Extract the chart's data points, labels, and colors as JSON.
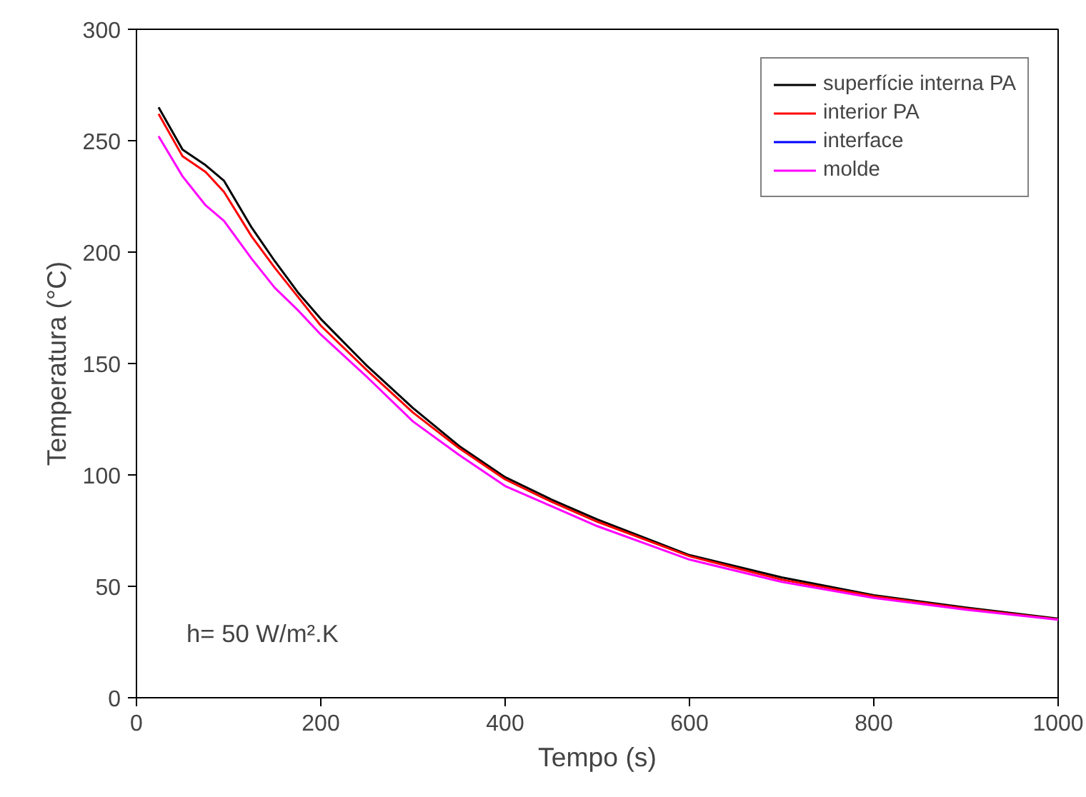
{
  "chart_data": {
    "type": "line",
    "xlabel": "Tempo (s)",
    "ylabel": "Temperatura (°C)",
    "x": [
      24,
      50,
      75,
      95,
      125,
      150,
      175,
      200,
      250,
      300,
      350,
      400,
      450,
      500,
      600,
      700,
      800,
      900,
      1000
    ],
    "series": [
      {
        "name": "superfície interna PA",
        "color": "#000000",
        "values": [
          265,
          246,
          239,
          232,
          211,
          196,
          182,
          170,
          149,
          130,
          113,
          99,
          89,
          80,
          64,
          54,
          46,
          40.5,
          35.5
        ]
      },
      {
        "name": "interior PA",
        "color": "#ff0000",
        "values": [
          262,
          243,
          236,
          227,
          207,
          193,
          180,
          167,
          147,
          128,
          112,
          98,
          88,
          79,
          63.5,
          53,
          45.5,
          40,
          35.2
        ]
      },
      {
        "name": "interface",
        "color": "#0000ff",
        "values": [
          null,
          null,
          null,
          null,
          null,
          null,
          null,
          null,
          null,
          null,
          null,
          null,
          null,
          null,
          null,
          null,
          null,
          null,
          null
        ]
      },
      {
        "name": "molde",
        "color": "#ff00ff",
        "values": [
          252,
          234,
          221,
          214,
          197,
          184,
          174,
          163,
          144,
          124,
          109,
          95,
          86,
          77,
          62,
          52,
          44.8,
          39.5,
          35
        ]
      }
    ],
    "xlim": [
      0,
      1000
    ],
    "ylim": [
      0,
      300
    ],
    "xticks": [
      0,
      200,
      400,
      600,
      800,
      1000
    ],
    "yticks": [
      0,
      50,
      100,
      150,
      200,
      250,
      300
    ],
    "grid": false,
    "legend": "top right",
    "marker": "none",
    "line_style": "solid",
    "annotations": [
      "h= 50 W/m².K"
    ]
  }
}
